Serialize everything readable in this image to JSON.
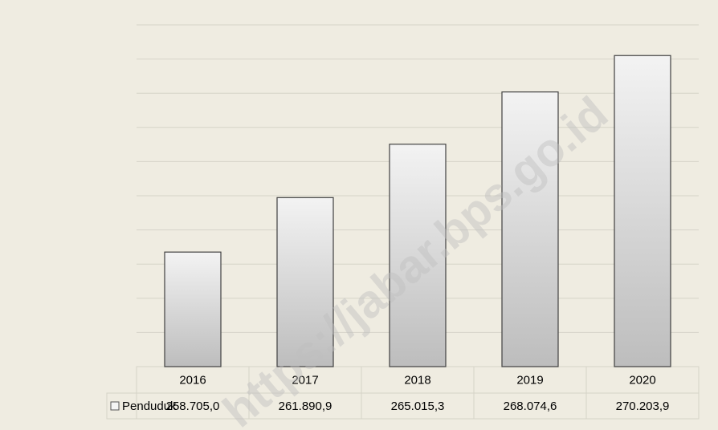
{
  "chart_data": {
    "type": "bar",
    "categories": [
      "2016",
      "2017",
      "2018",
      "2019",
      "2020"
    ],
    "series": [
      {
        "name": "Penduduk",
        "color": "#d9d9d9",
        "values": [
          258705.0,
          261890.9,
          265015.3,
          268074.6,
          270203.9
        ],
        "value_labels": [
          "258.705,0",
          "261.890,9",
          "265.015,3",
          "268.074,6",
          "270.203,9"
        ]
      }
    ],
    "ylim": [
      252000,
      272000
    ],
    "yticks": [
      252000,
      254000,
      256000,
      258000,
      260000,
      262000,
      264000,
      266000,
      268000,
      270000,
      272000
    ],
    "grid": true,
    "watermark": "https://jabar.bps.go.id"
  }
}
